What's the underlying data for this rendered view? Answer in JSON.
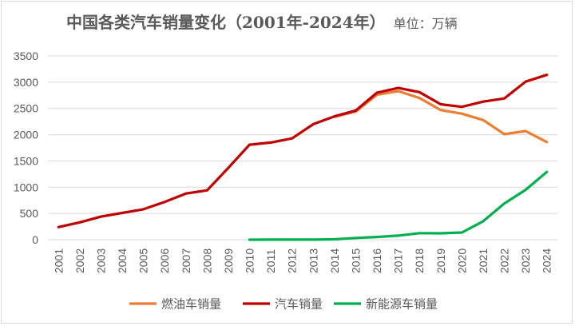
{
  "chart_data": {
    "type": "line",
    "title": "中国各类汽车销量变化（2001年-2024年）",
    "unit_label": "单位：万辆",
    "categories": [
      "2001",
      "2002",
      "2003",
      "2004",
      "2005",
      "2006",
      "2007",
      "2008",
      "2009",
      "2010",
      "2011",
      "2012",
      "2013",
      "2014",
      "2015",
      "2016",
      "2017",
      "2018",
      "2019",
      "2020",
      "2021",
      "2022",
      "2023",
      "2024"
    ],
    "ylim": [
      0,
      3500
    ],
    "yticks": [
      0,
      500,
      1000,
      1500,
      2000,
      2500,
      3000,
      3500
    ],
    "grid": true,
    "legend_position": "bottom",
    "series": [
      {
        "name": "燃油车销量",
        "color": "#ed7d31",
        "values": [
          null,
          null,
          null,
          null,
          null,
          null,
          null,
          null,
          null,
          null,
          null,
          null,
          null,
          2340,
          2440,
          2760,
          2830,
          2700,
          2470,
          2400,
          2280,
          2010,
          2070,
          1860
        ]
      },
      {
        "name": "汽车销量",
        "color": "#c00000",
        "values": [
          240,
          330,
          440,
          510,
          580,
          720,
          880,
          940,
          1370,
          1810,
          1850,
          1930,
          2200,
          2350,
          2460,
          2800,
          2890,
          2810,
          2580,
          2530,
          2630,
          2690,
          3010,
          3140
        ]
      },
      {
        "name": "新能源车销量",
        "color": "#00b050",
        "values": [
          null,
          null,
          null,
          null,
          null,
          null,
          null,
          null,
          null,
          0,
          1,
          1,
          2,
          7,
          33,
          51,
          78,
          125,
          121,
          137,
          352,
          689,
          950,
          1290
        ]
      }
    ]
  }
}
